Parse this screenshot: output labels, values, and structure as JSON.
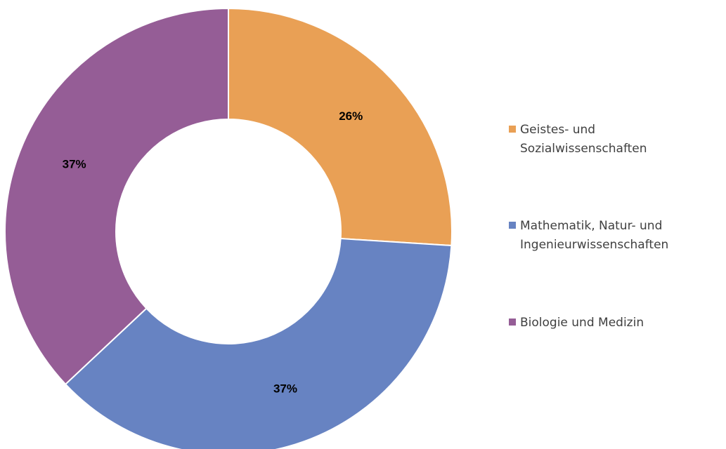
{
  "chart_data": {
    "type": "pie",
    "variant": "donut",
    "title": "",
    "legend_position": "right",
    "slices": [
      {
        "label": "Geistes- und Sozialwissenschaften",
        "legend_lines": [
          "Geistes- und",
          "Sozialwissenschaften"
        ],
        "value": 26,
        "display": "26%",
        "color": "#E9A055"
      },
      {
        "label": "Mathematik, Natur- und Ingenieurwissenschaften",
        "legend_lines": [
          "Mathematik, Natur- und",
          "Ingenieurwissenschaften"
        ],
        "value": 37,
        "display": "37%",
        "color": "#6783C2"
      },
      {
        "label": "Biologie und Medizin",
        "legend_lines": [
          "Biologie und Medizin"
        ],
        "value": 37,
        "display": "37%",
        "color": "#955D96"
      }
    ]
  }
}
